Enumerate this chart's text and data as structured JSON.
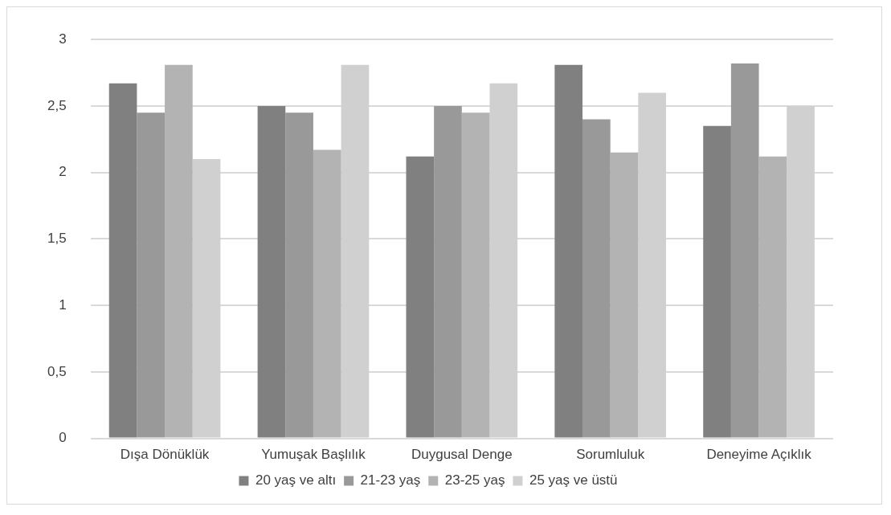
{
  "chart_data": {
    "type": "bar",
    "categories": [
      "Dışa Dönüklük",
      "Yumuşak Başlılık",
      "Duygusal Denge",
      "Sorumluluk",
      "Deneyime Açıklık"
    ],
    "series": [
      {
        "name": "20 yaş ve altı",
        "color": "#808080",
        "values": [
          2.67,
          2.5,
          2.12,
          2.81,
          2.35
        ]
      },
      {
        "name": "21-23 yaş",
        "color": "#999999",
        "values": [
          2.45,
          2.45,
          2.5,
          2.4,
          2.82
        ]
      },
      {
        "name": "23-25 yaş",
        "color": "#b3b3b3",
        "values": [
          2.81,
          2.17,
          2.45,
          2.15,
          2.12
        ]
      },
      {
        "name": "25 yaş ve üstü",
        "color": "#d0d0d0",
        "values": [
          2.1,
          2.81,
          2.67,
          2.6,
          2.5
        ]
      }
    ],
    "ylim": [
      0,
      3
    ],
    "yticks": [
      0,
      {
        "value": 0.5,
        "label": "0,5"
      },
      1,
      {
        "value": 1.5,
        "label": "1,5"
      },
      2,
      {
        "value": 2.5,
        "label": "2,5"
      },
      3
    ],
    "grid": "y",
    "legend": "bottom"
  }
}
